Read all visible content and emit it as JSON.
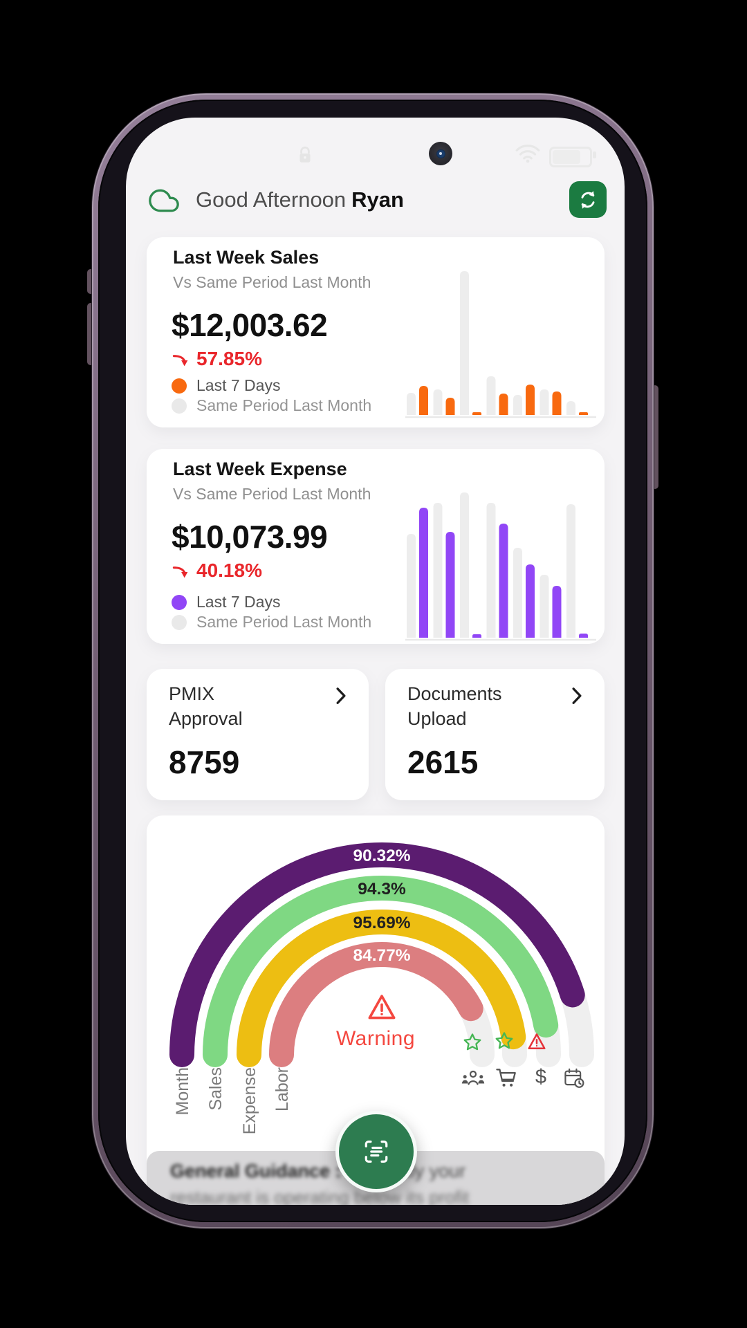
{
  "status_bar": {
    "battery_fill_ratio": 0.72,
    "icons": [
      "lock-icon",
      "camera-hole",
      "wifi-icon",
      "battery-icon"
    ]
  },
  "header": {
    "greeting": "Good Afternoon",
    "username": "Ryan"
  },
  "cards": {
    "sales": {
      "title": "Last Week Sales",
      "subtitle": "Vs Same Period Last Month",
      "amount": "$12,003.62",
      "delta_pct": "57.85%",
      "legend_primary": "Last 7 Days",
      "legend_secondary": "Same Period Last Month"
    },
    "expense": {
      "title": "Last Week Expense",
      "subtitle": "Vs Same Period Last Month",
      "amount": "$10,073.99",
      "delta_pct": "40.18%",
      "legend_primary": "Last 7 Days",
      "legend_secondary": "Same Period Last Month"
    }
  },
  "quick_links": [
    {
      "title_line1": "PMIX",
      "title_line2": "Approval",
      "value": "8759"
    },
    {
      "title_line1": "Documents",
      "title_line2": "Upload",
      "value": "2615"
    }
  ],
  "guidance": {
    "heading": "General Guidance :",
    "text_line1": "Currently your",
    "text_line2": "restaurant is operating below its profit"
  },
  "colors": {
    "accent_green": "#1b7b41",
    "fab_green": "#2d7c50",
    "sales_orange": "#f8690f",
    "expense_purple": "#9146f6",
    "delta_red": "#e9262b",
    "track_gray": "#efefef",
    "warning_red": "#f4473f"
  },
  "chart_data": [
    {
      "type": "bar",
      "name": "last_week_sales_vs_last_month",
      "title": "Last Week Sales Vs Same Period Last Month",
      "groups": 7,
      "series": [
        {
          "name": "Same Period Last Month",
          "color": "#ededed",
          "values": [
            32,
            37,
            208,
            56,
            29,
            37,
            20
          ]
        },
        {
          "name": "Last 7 Days",
          "color": "#f8690f",
          "values": [
            42,
            25,
            4,
            31,
            44,
            34,
            4
          ]
        }
      ],
      "note": "no axis labels shown; values are relative bar heights"
    },
    {
      "type": "bar",
      "name": "last_week_expense_vs_last_month",
      "title": "Last Week Expense Vs Same Period Last Month",
      "groups": 7,
      "series": [
        {
          "name": "Same Period Last Month",
          "color": "#ededed",
          "values": [
            150,
            195,
            210,
            195,
            130,
            91,
            193
          ]
        },
        {
          "name": "Last 7 Days",
          "color": "#9146f6",
          "values": [
            188,
            153,
            5,
            165,
            106,
            75,
            6
          ]
        }
      ],
      "note": "no axis labels shown; values are relative bar heights"
    },
    {
      "type": "gauge",
      "name": "performance_rings",
      "max": 100,
      "center_status": "Warning",
      "rings": [
        {
          "label": "Month",
          "value": 90.32,
          "value_label": "90.32%",
          "color": "#5b1c70",
          "text_color": "#ffffff",
          "status_icon": null,
          "category_icon": "calendar-clock-icon"
        },
        {
          "label": "Sales",
          "value": 94.3,
          "value_label": "94.3%",
          "color": "#7fd883",
          "text_color": "#202020",
          "status_icon": "warning",
          "category_icon": "dollar-icon"
        },
        {
          "label": "Expense",
          "value": 95.69,
          "value_label": "95.69%",
          "color": "#edbe12",
          "text_color": "#202020",
          "status_icon": "good",
          "category_icon": "cart-icon"
        },
        {
          "label": "Labor",
          "value": 84.77,
          "value_label": "84.77%",
          "color": "#dc7e80",
          "text_color": "#ffffff",
          "status_icon": "good",
          "category_icon": "team-icon"
        }
      ]
    }
  ]
}
